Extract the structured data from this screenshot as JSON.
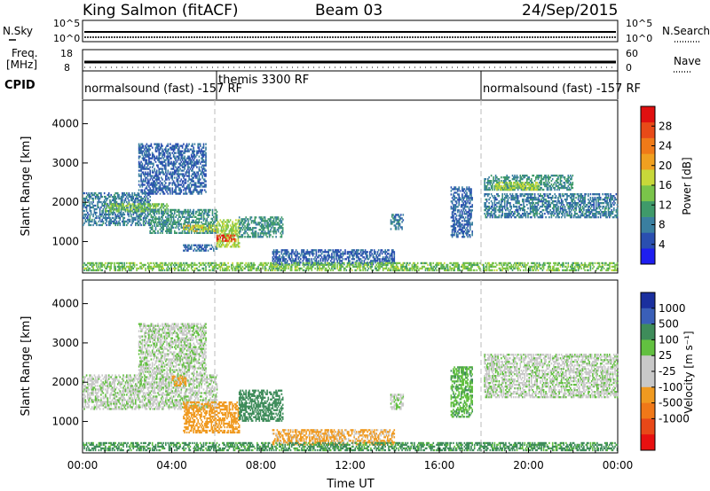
{
  "header": {
    "station": "King Salmon (fitACF)",
    "beam": "Beam 03",
    "date": "24/Sep/2015"
  },
  "noise_panel": {
    "left_label": "N.Sky",
    "right_label": "N.Search",
    "top_tick": "10^5",
    "bottom_tick": "10^0"
  },
  "freq_panel": {
    "left_label_line1": "Freq.",
    "left_label_line2": "[MHz]",
    "left_ticks": [
      "18",
      "8"
    ],
    "right_ticks": [
      "60",
      "0"
    ],
    "right_label": "Nave"
  },
  "cpid": {
    "label": "CPID",
    "segments": [
      {
        "start": "00:00",
        "end": "06:00",
        "text": "normalsound (fast) -157 RF"
      },
      {
        "start": "06:00",
        "end": "18:00",
        "text": "themis 3300 RF"
      },
      {
        "start": "18:00",
        "end": "24:00",
        "text": "normalsound (fast) -157 RF"
      }
    ]
  },
  "colors": {
    "power_scale": [
      "#1e1ef0",
      "#2a4fb0",
      "#3a7fa0",
      "#3f9a6a",
      "#7ac44a",
      "#c8d83a",
      "#f0a020",
      "#f07a18",
      "#e84a18",
      "#e01010"
    ],
    "velocity_scale": [
      "#1a2f9e",
      "#3a5fb8",
      "#3e8c5a",
      "#62c040",
      "#c8c8c8",
      "#c8c8c8",
      "#f09a20",
      "#f07818",
      "#e84818",
      "#e81010"
    ]
  },
  "chart_data": [
    {
      "type": "heatmap",
      "panel": "power",
      "ylabel": "Slant Range [km]",
      "yticks": [
        "1000",
        "2000",
        "3000",
        "4000"
      ],
      "ylim": [
        200,
        4600
      ],
      "xlim": [
        0,
        24
      ],
      "colorbar_label": "Power [dB]",
      "colorbar_ticks": [
        "4",
        "8",
        "12",
        "16",
        "20",
        "24",
        "28"
      ],
      "colorbar_range": [
        0,
        32
      ],
      "regions": [
        {
          "x": [
            0.0,
            3.0
          ],
          "y": [
            1400,
            2250
          ],
          "value": 8
        },
        {
          "x": [
            1.0,
            3.8
          ],
          "y": [
            1750,
            1950
          ],
          "value": 14
        },
        {
          "x": [
            3.0,
            6.0
          ],
          "y": [
            1200,
            1800
          ],
          "value": 10
        },
        {
          "x": [
            4.5,
            6.0
          ],
          "y": [
            1250,
            1400
          ],
          "value": 18
        },
        {
          "x": [
            2.5,
            5.5
          ],
          "y": [
            2200,
            3500
          ],
          "value": 6
        },
        {
          "x": [
            4.5,
            6.0
          ],
          "y": [
            750,
            900
          ],
          "value": 6
        },
        {
          "x": [
            6.0,
            7.0
          ],
          "y": [
            850,
            1550
          ],
          "value": 16
        },
        {
          "x": [
            6.0,
            6.8
          ],
          "y": [
            1000,
            1150
          ],
          "value": 28
        },
        {
          "x": [
            7.0,
            9.0
          ],
          "y": [
            1100,
            1600
          ],
          "value": 10
        },
        {
          "x": [
            8.5,
            14.0
          ],
          "y": [
            400,
            800
          ],
          "value": 6
        },
        {
          "x": [
            13.8,
            14.4
          ],
          "y": [
            1300,
            1700
          ],
          "value": 8
        },
        {
          "x": [
            16.5,
            17.5
          ],
          "y": [
            1100,
            2400
          ],
          "value": 6
        },
        {
          "x": [
            18.0,
            22.0
          ],
          "y": [
            2300,
            2700
          ],
          "value": 10
        },
        {
          "x": [
            18.5,
            20.5
          ],
          "y": [
            2300,
            2500
          ],
          "value": 16
        },
        {
          "x": [
            18.0,
            24.0
          ],
          "y": [
            1600,
            2200
          ],
          "value": 8
        },
        {
          "x": [
            0.0,
            24.0
          ],
          "y": [
            250,
            450
          ],
          "value": 14
        }
      ]
    },
    {
      "type": "heatmap",
      "panel": "velocity",
      "ylabel": "Slant Range [km]",
      "yticks": [
        "1000",
        "2000",
        "3000",
        "4000"
      ],
      "ylim": [
        200,
        4600
      ],
      "xlim": [
        0,
        24
      ],
      "xlabel": "Time UT",
      "xticks": [
        "00:00",
        "04:00",
        "08:00",
        "12:00",
        "16:00",
        "20:00",
        "00:00"
      ],
      "colorbar_label": "Velocity [m s⁻¹]",
      "colorbar_ticks": [
        "1000",
        "500",
        "100",
        "25",
        "-25",
        "-100",
        "-500",
        "-1000"
      ],
      "regions": [
        {
          "x": [
            0.0,
            6.0
          ],
          "y": [
            1300,
            2200
          ],
          "value": 0
        },
        {
          "x": [
            4.0,
            4.6
          ],
          "y": [
            1900,
            2150
          ],
          "value": -200
        },
        {
          "x": [
            2.5,
            5.5
          ],
          "y": [
            2200,
            3500
          ],
          "value": 0
        },
        {
          "x": [
            4.5,
            7.0
          ],
          "y": [
            700,
            1500
          ],
          "value": -250
        },
        {
          "x": [
            7.0,
            9.0
          ],
          "y": [
            1000,
            1800
          ],
          "value": 150
        },
        {
          "x": [
            8.5,
            14.0
          ],
          "y": [
            400,
            800
          ],
          "value": -80
        },
        {
          "x": [
            13.8,
            14.4
          ],
          "y": [
            1300,
            1700
          ],
          "value": 0
        },
        {
          "x": [
            16.5,
            17.5
          ],
          "y": [
            1100,
            2400
          ],
          "value": 50
        },
        {
          "x": [
            18.0,
            24.0
          ],
          "y": [
            1600,
            2700
          ],
          "value": 0
        },
        {
          "x": [
            0.0,
            24.0
          ],
          "y": [
            250,
            450
          ],
          "value": 80
        }
      ]
    }
  ]
}
